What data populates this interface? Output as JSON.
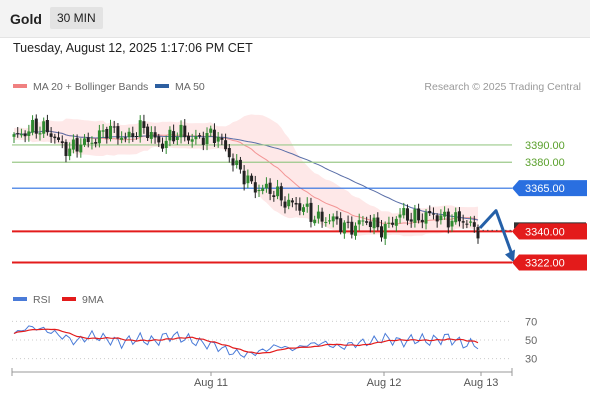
{
  "header": {
    "symbol": "Gold",
    "timeframe": "30 MIN"
  },
  "datetime": "Tuesday, August 12, 2025 1:17:06 PM CET",
  "legend": {
    "bollinger": {
      "label": "MA 20 + Bollinger Bands",
      "color": "#f08080"
    },
    "ma50": {
      "label": "MA 50",
      "color": "#2d5fa0"
    },
    "credit": "Research © 2025 Trading Central"
  },
  "colors": {
    "bull": "#2f8a2f",
    "bear": "#222222",
    "band_fill": "#fde0e0",
    "ma20": "#f08080",
    "ma50": "#5a6fa8",
    "resistance": "#9bc98a",
    "support": "#e31b1b",
    "pivot": "#2a6fe0",
    "forecast_arrow": "#2560a8",
    "rsi": "#4a7bd8",
    "rsi_ma": "#e31b1b"
  },
  "chart_data": [
    {
      "type": "candlestick",
      "ylim": [
        3309,
        3416
      ],
      "x_ticks": [
        "Aug 11",
        "Aug 12",
        "Aug 13"
      ],
      "current_price": "3340.61",
      "levels": [
        {
          "value": 3390.0,
          "label": "3390.00",
          "kind": "resistance"
        },
        {
          "value": 3380.0,
          "label": "3380.00",
          "kind": "resistance"
        },
        {
          "value": 3365.0,
          "label": "3365.00",
          "kind": "pivot"
        },
        {
          "value": 3340.0,
          "label": "3340.00",
          "kind": "support"
        },
        {
          "value": 3322.0,
          "label": "3322.00",
          "kind": "support"
        }
      ],
      "forecast_path": [
        3342,
        3352,
        3322
      ],
      "series": [
        {
          "name": "MA 20 + Bollinger Bands",
          "role": "ma20"
        },
        {
          "name": "MA 50",
          "role": "ma50"
        }
      ],
      "anchor_closes": [
        3393,
        3401,
        3396,
        3387,
        3392,
        3398,
        3395,
        3399,
        3391,
        3397,
        3393,
        3396,
        3376,
        3366,
        3362,
        3356,
        3350,
        3346,
        3343,
        3345,
        3342,
        3350,
        3348,
        3349,
        3346,
        3342
      ]
    },
    {
      "type": "line",
      "title": "RSI",
      "ylim": [
        20,
        80
      ],
      "y_ticks": [
        30,
        50,
        70
      ],
      "series": [
        {
          "name": "RSI",
          "role": "rsi"
        },
        {
          "name": "9MA",
          "role": "rsi_ma"
        }
      ],
      "anchor_values": [
        57,
        64,
        61,
        55,
        48,
        55,
        51,
        47,
        52,
        48,
        55,
        52,
        47,
        44,
        37,
        34,
        38,
        44,
        40,
        45,
        47,
        42,
        46,
        48,
        52,
        48,
        51,
        49,
        53,
        46,
        45
      ]
    }
  ]
}
